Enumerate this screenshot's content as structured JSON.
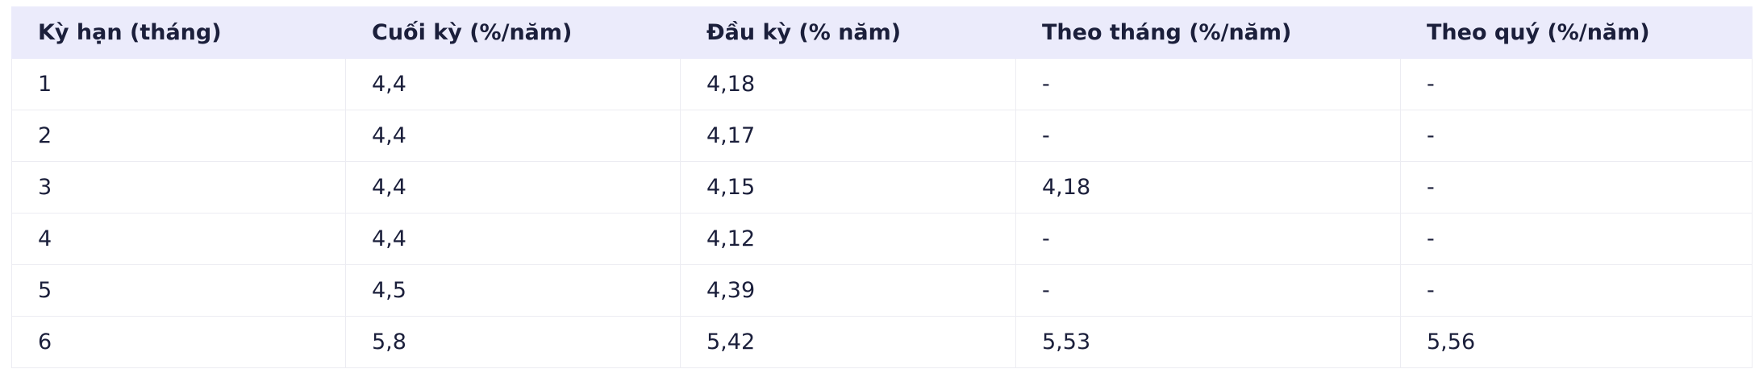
{
  "table": {
    "columns": [
      "Kỳ hạn (tháng)",
      "Cuối kỳ (%/năm)",
      "Đầu kỳ (% năm)",
      "Theo tháng (%/năm)",
      "Theo quý (%/năm)"
    ],
    "rows": [
      [
        "1",
        "4,4",
        "4,18",
        "-",
        "-"
      ],
      [
        "2",
        "4,4",
        "4,17",
        "-",
        "-"
      ],
      [
        "3",
        "4,4",
        "4,15",
        "4,18",
        "-"
      ],
      [
        "4",
        "4,4",
        "4,12",
        "-",
        "-"
      ],
      [
        "5",
        "4,5",
        "4,39",
        "-",
        "-"
      ],
      [
        "6",
        "5,8",
        "5,42",
        "5,53",
        "5,56"
      ]
    ]
  }
}
